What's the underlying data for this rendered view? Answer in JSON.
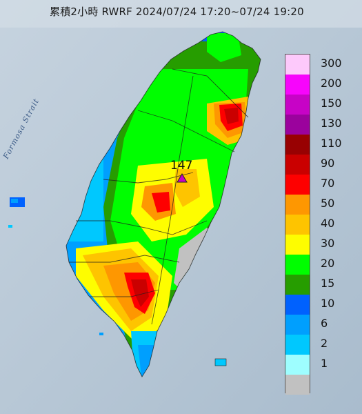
{
  "title": "累積2小時 RWRF 2024/07/24 17:20~07/24 19:20",
  "strait_label": "Formosa Strait",
  "peak": {
    "value": "147"
  },
  "legend": {
    "items": [
      {
        "label": "300",
        "color": "#fdc9fb"
      },
      {
        "label": "200",
        "color": "#f705fc"
      },
      {
        "label": "150",
        "color": "#c703c6"
      },
      {
        "label": "130",
        "color": "#9b029d"
      },
      {
        "label": "110",
        "color": "#980102"
      },
      {
        "label": "90",
        "color": "#ca0000"
      },
      {
        "label": "70",
        "color": "#fe0000"
      },
      {
        "label": "50",
        "color": "#fe9701"
      },
      {
        "label": "40",
        "color": "#fec400"
      },
      {
        "label": "30",
        "color": "#fefd00"
      },
      {
        "label": "20",
        "color": "#00fe00"
      },
      {
        "label": "15",
        "color": "#269d00"
      },
      {
        "label": "10",
        "color": "#0061fe"
      },
      {
        "label": "6",
        "color": "#009ffe"
      },
      {
        "label": "2",
        "color": "#00c8fe"
      },
      {
        "label": "1",
        "color": "#9efeff"
      },
      {
        "label": "",
        "color": "#c1c1c1"
      }
    ]
  }
}
